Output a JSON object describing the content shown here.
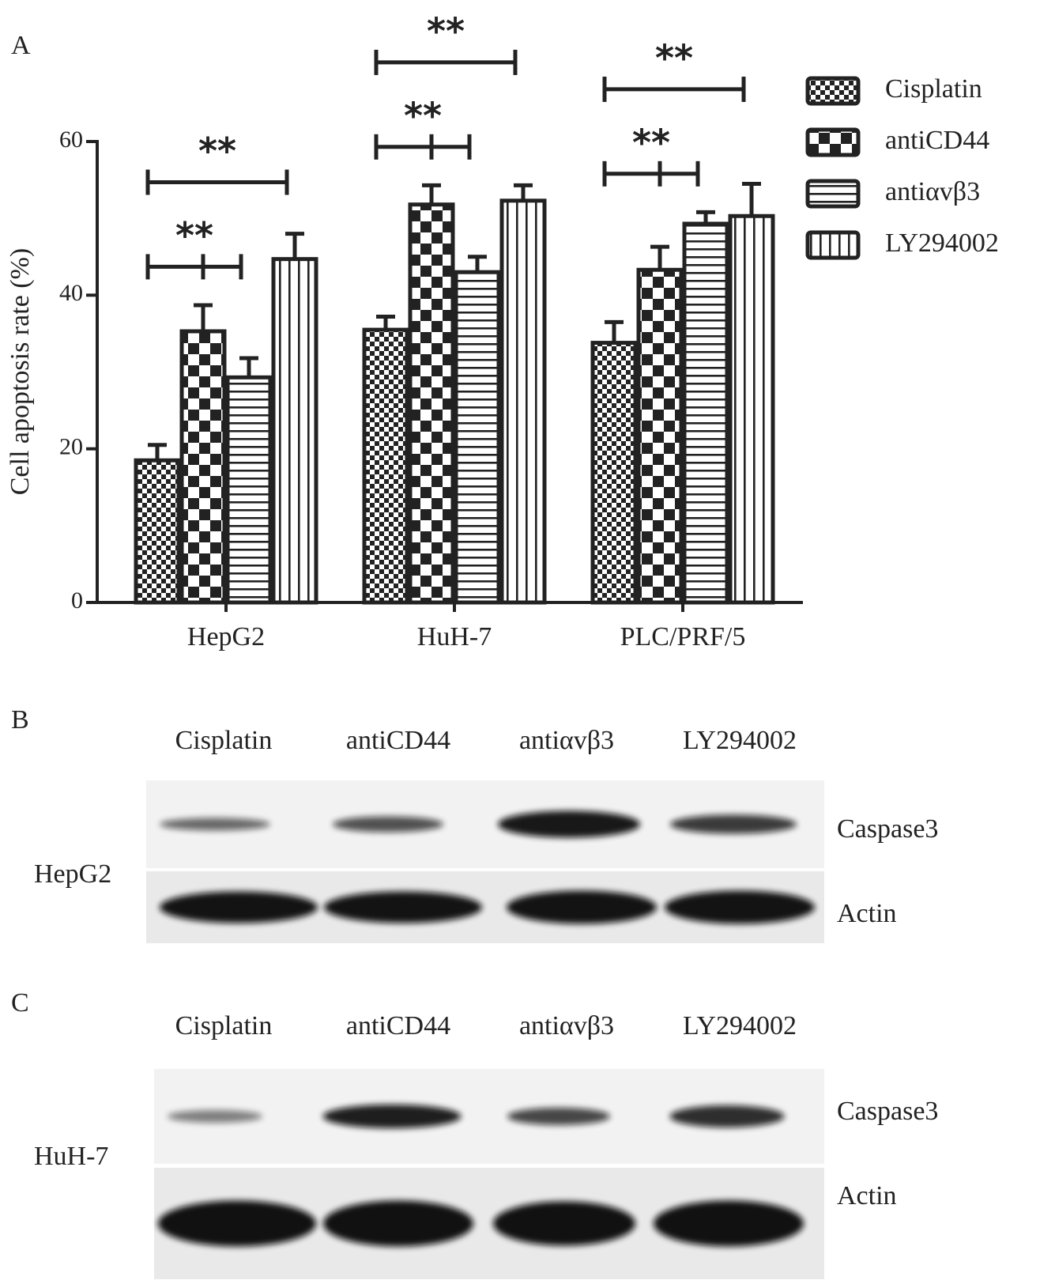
{
  "chart_data": {
    "type": "bar",
    "panel_label": "A",
    "ylabel": "Cell apoptosis rate (%)",
    "categories": [
      "HepG2",
      "HuH-7",
      "PLC/PRF/5"
    ],
    "series": [
      {
        "name": "Cisplatin",
        "hatch": "fine-checker",
        "color": "#222222",
        "values": [
          18.5,
          35.5,
          33.8
        ],
        "errors": [
          2.0,
          1.7,
          2.7
        ]
      },
      {
        "name": "antiCD44",
        "hatch": "checker",
        "color": "#222222",
        "values": [
          35.3,
          51.8,
          43.3
        ],
        "errors": [
          3.4,
          2.5,
          3.0
        ]
      },
      {
        "name": "antiαvβ3",
        "hatch": "horizontal",
        "color": "#222222",
        "values": [
          29.3,
          43.0,
          49.3
        ],
        "errors": [
          2.5,
          2.0,
          1.5
        ]
      },
      {
        "name": "LY294002",
        "hatch": "vertical",
        "color": "#222222",
        "values": [
          44.7,
          52.3,
          50.3
        ],
        "errors": [
          3.3,
          2.0,
          4.2
        ]
      }
    ],
    "ylim": [
      0,
      60
    ],
    "yticks": [
      0,
      20,
      40,
      60
    ],
    "legend": "right",
    "annotations": [
      {
        "text": "**",
        "category": 0,
        "from": 0,
        "to": 2
      },
      {
        "text": "**",
        "category": 0,
        "from": 0,
        "to": 3
      },
      {
        "text": "**",
        "category": 1,
        "from": 0,
        "to": 2
      },
      {
        "text": "**",
        "category": 1,
        "from": 0,
        "to": 3
      },
      {
        "text": "**",
        "category": 2,
        "from": 0,
        "to": 2
      },
      {
        "text": "**",
        "category": 2,
        "from": 0,
        "to": 3
      }
    ]
  },
  "blots": [
    {
      "panel_label": "B",
      "cell_line": "HepG2",
      "lanes": [
        "Cisplatin",
        "antiCD44",
        "antiαvβ3",
        "LY294002"
      ],
      "bands": [
        "Caspase3",
        "Actin"
      ]
    },
    {
      "panel_label": "C",
      "cell_line": "HuH-7",
      "lanes": [
        "Cisplatin",
        "antiCD44",
        "antiαvβ3",
        "LY294002"
      ],
      "bands": [
        "Caspase3",
        "Actin"
      ]
    }
  ]
}
